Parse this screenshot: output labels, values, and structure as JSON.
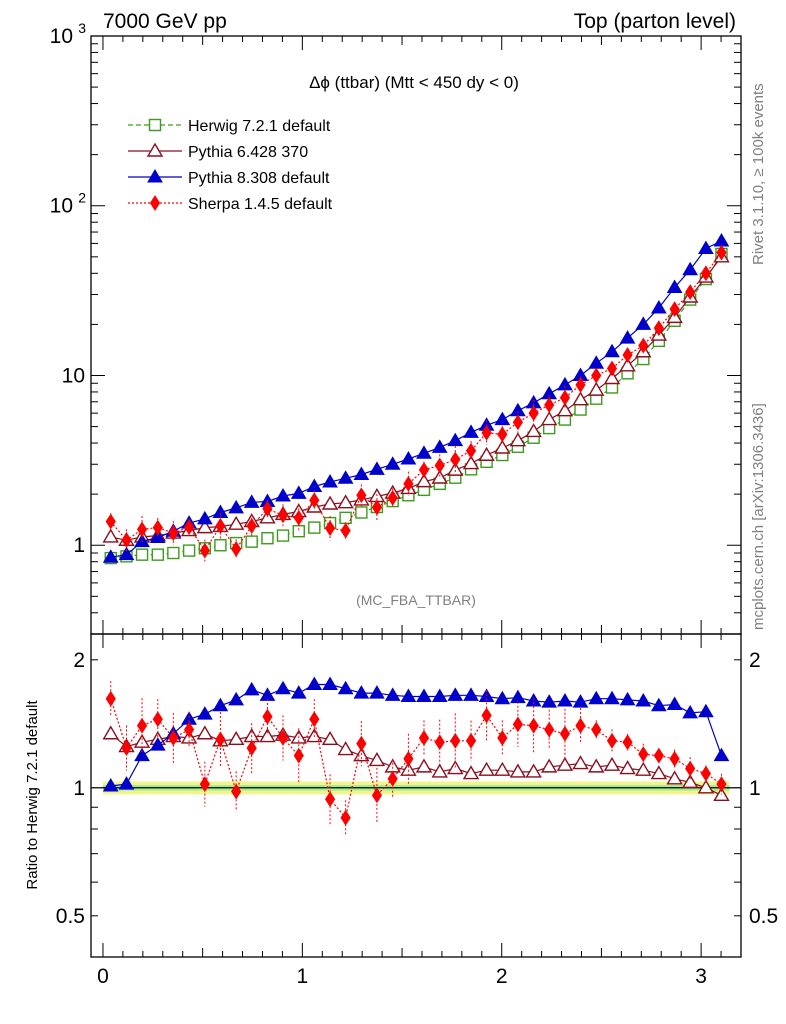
{
  "header": {
    "left": "7000 GeV pp",
    "right": "Top (parton level)"
  },
  "side_text": {
    "rivet": "Rivet 3.1.10, ≥ 100k events",
    "mcplots": "mcplots.cern.ch [arXiv:1306.3436]"
  },
  "chart_data": [
    {
      "type": "line",
      "title": "Δϕ (ttbar) (Mtt < 450 dy < 0)",
      "annotation": "(MC_FBA_TTBAR)",
      "xlabel": "",
      "ylabel": "",
      "xlim": [
        -0.06,
        3.2
      ],
      "ylim": [
        0.3,
        1000
      ],
      "yscale": "log",
      "x_ticks": [
        "0",
        "1",
        "2",
        "3"
      ],
      "y_ticks": [
        {
          "value": 1,
          "label": "1"
        },
        {
          "value": 10,
          "label": "10"
        },
        {
          "value": 100,
          "label": "10^2"
        },
        {
          "value": 1000,
          "label": "10^3"
        }
      ],
      "legend_position": "top-left",
      "x": [
        0.039,
        0.118,
        0.196,
        0.275,
        0.353,
        0.432,
        0.511,
        0.589,
        0.668,
        0.746,
        0.825,
        0.903,
        0.982,
        1.06,
        1.139,
        1.217,
        1.296,
        1.374,
        1.453,
        1.532,
        1.61,
        1.689,
        1.767,
        1.846,
        1.924,
        2.003,
        2.081,
        2.16,
        2.238,
        2.317,
        2.395,
        2.474,
        2.553,
        2.631,
        2.71,
        2.788,
        2.867,
        2.945,
        3.024,
        3.102
      ],
      "series": [
        {
          "name": "Herwig 7.2.1 default",
          "color": "#3d9a1e",
          "marker": "open-square",
          "line": "dashed",
          "values": [
            0.84,
            0.86,
            0.88,
            0.88,
            0.9,
            0.93,
            0.96,
            1.0,
            1.03,
            1.05,
            1.1,
            1.14,
            1.21,
            1.27,
            1.35,
            1.45,
            1.56,
            1.68,
            1.82,
            1.97,
            2.12,
            2.3,
            2.5,
            2.8,
            3.1,
            3.4,
            3.8,
            4.3,
            4.9,
            5.5,
            6.3,
            7.3,
            8.5,
            10.3,
            12.5,
            16.0,
            21.0,
            28.0,
            37.0,
            52.0
          ]
        },
        {
          "name": "Pythia 6.428 370",
          "color": "#8b0f1e",
          "marker": "open-triangle",
          "line": "solid",
          "values": [
            1.12,
            1.07,
            1.12,
            1.14,
            1.18,
            1.22,
            1.27,
            1.29,
            1.33,
            1.38,
            1.45,
            1.52,
            1.58,
            1.68,
            1.75,
            1.78,
            1.85,
            1.94,
            2.03,
            2.16,
            2.37,
            2.49,
            2.77,
            3.03,
            3.39,
            3.74,
            4.13,
            4.68,
            5.5,
            6.2,
            7.2,
            8.2,
            9.6,
            11.4,
            13.8,
            17.3,
            22.0,
            29.0,
            38.0,
            50.0
          ]
        },
        {
          "name": "Pythia 8.308 default",
          "color": "#0000cc",
          "marker": "filled-triangle",
          "line": "solid",
          "values": [
            0.85,
            0.88,
            1.05,
            1.11,
            1.21,
            1.35,
            1.43,
            1.56,
            1.66,
            1.79,
            1.81,
            1.95,
            2.02,
            2.22,
            2.36,
            2.48,
            2.61,
            2.8,
            3.0,
            3.22,
            3.48,
            3.77,
            4.13,
            4.62,
            5.09,
            5.5,
            6.2,
            6.9,
            7.8,
            8.8,
            10.0,
            11.8,
            13.8,
            16.6,
            20.0,
            25.0,
            33.0,
            42.0,
            56.0,
            62.0
          ]
        },
        {
          "name": "Sherpa 1.4.5 default",
          "color": "#ff0000",
          "marker": "filled-diamond",
          "line": "dotted",
          "values": [
            1.38,
            1.07,
            1.24,
            1.27,
            1.18,
            1.28,
            0.93,
            1.3,
            0.95,
            1.3,
            1.64,
            1.5,
            1.45,
            1.84,
            1.26,
            1.22,
            1.97,
            1.67,
            1.9,
            2.3,
            2.78,
            2.95,
            3.2,
            3.6,
            4.6,
            4.5,
            5.3,
            6.0,
            6.7,
            7.4,
            8.8,
            10.0,
            11.0,
            13.2,
            15.0,
            19.0,
            24.6,
            31.0,
            40.0,
            53.0
          ]
        }
      ]
    },
    {
      "type": "line",
      "title": "",
      "xlabel": "",
      "ylabel": "Ratio to Herwig 7.2.1 default",
      "xlim": [
        -0.06,
        3.2
      ],
      "ylim": [
        0.4,
        2.3
      ],
      "yscale": "log",
      "x_ticks": [
        "0",
        "1",
        "2",
        "3"
      ],
      "y_ticks": [
        {
          "value": 0.5,
          "label": "0.5"
        },
        {
          "value": 1,
          "label": "1"
        },
        {
          "value": 2,
          "label": "2"
        }
      ],
      "reference": 1,
      "x": [
        0.039,
        0.118,
        0.196,
        0.275,
        0.353,
        0.432,
        0.511,
        0.589,
        0.668,
        0.746,
        0.825,
        0.903,
        0.982,
        1.06,
        1.139,
        1.217,
        1.296,
        1.374,
        1.453,
        1.532,
        1.61,
        1.689,
        1.767,
        1.846,
        1.924,
        2.003,
        2.081,
        2.16,
        2.238,
        2.317,
        2.395,
        2.474,
        2.553,
        2.631,
        2.71,
        2.788,
        2.867,
        2.945,
        3.024,
        3.102
      ],
      "series": [
        {
          "name": "Pythia 6.428 370",
          "color": "#8b0f1e",
          "marker": "open-triangle",
          "line": "solid",
          "values": [
            1.34,
            1.25,
            1.28,
            1.3,
            1.32,
            1.31,
            1.34,
            1.29,
            1.3,
            1.32,
            1.32,
            1.33,
            1.31,
            1.32,
            1.3,
            1.23,
            1.19,
            1.16,
            1.12,
            1.1,
            1.12,
            1.09,
            1.11,
            1.08,
            1.1,
            1.1,
            1.09,
            1.09,
            1.12,
            1.13,
            1.14,
            1.12,
            1.13,
            1.11,
            1.1,
            1.08,
            1.05,
            1.03,
            1.0,
            0.96
          ]
        },
        {
          "name": "Pythia 8.308 default",
          "color": "#0000cc",
          "marker": "filled-triangle",
          "line": "solid",
          "values": [
            1.01,
            1.02,
            1.19,
            1.26,
            1.34,
            1.45,
            1.49,
            1.56,
            1.61,
            1.7,
            1.65,
            1.71,
            1.67,
            1.75,
            1.75,
            1.71,
            1.67,
            1.67,
            1.65,
            1.64,
            1.64,
            1.64,
            1.65,
            1.65,
            1.64,
            1.62,
            1.63,
            1.6,
            1.59,
            1.6,
            1.59,
            1.62,
            1.62,
            1.61,
            1.6,
            1.56,
            1.57,
            1.5,
            1.51,
            1.19
          ]
        },
        {
          "name": "Sherpa 1.4.5 default",
          "color": "#ff0000",
          "marker": "filled-diamond",
          "line": "dotted",
          "values": [
            1.62,
            1.24,
            1.4,
            1.45,
            1.31,
            1.37,
            1.02,
            1.3,
            0.98,
            1.24,
            1.47,
            1.31,
            1.19,
            1.45,
            0.94,
            0.85,
            1.27,
            0.96,
            1.05,
            1.17,
            1.31,
            1.28,
            1.29,
            1.29,
            1.48,
            1.31,
            1.41,
            1.4,
            1.37,
            1.34,
            1.4,
            1.37,
            1.29,
            1.28,
            1.2,
            1.19,
            1.17,
            1.11,
            1.08,
            1.02
          ]
        }
      ]
    }
  ]
}
